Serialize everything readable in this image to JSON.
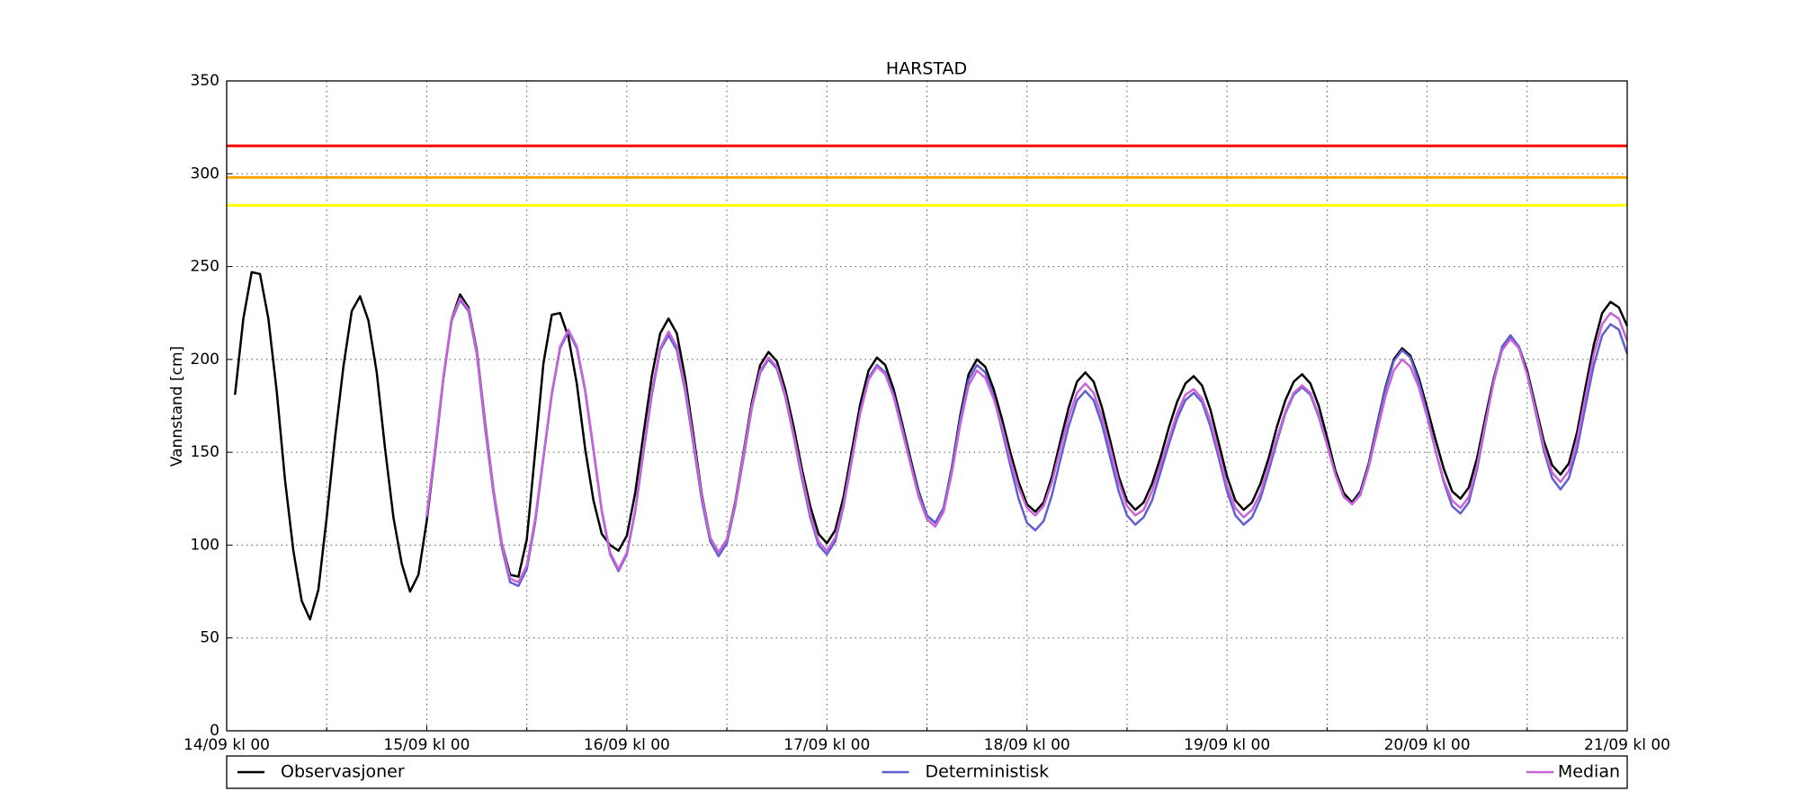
{
  "chart_data": {
    "type": "line",
    "title": "HARSTAD",
    "y_label": "Vannstand [cm]",
    "x": [
      1,
      2,
      3,
      4,
      5,
      6,
      7,
      8,
      9,
      10,
      11,
      12,
      13,
      14,
      15,
      16,
      17,
      18,
      19,
      20,
      21,
      22,
      23,
      24,
      25,
      26,
      27,
      28,
      29,
      30,
      31,
      32,
      33,
      34,
      35,
      36,
      37,
      38,
      39,
      40,
      41,
      42,
      43,
      44,
      45,
      46,
      47,
      48,
      49,
      50,
      51,
      52,
      53,
      54,
      55,
      56,
      57,
      58,
      59,
      60,
      61,
      62,
      63,
      64,
      65,
      66,
      67,
      68,
      69,
      70,
      71,
      72,
      73,
      74,
      75,
      76,
      77,
      78,
      79,
      80,
      81,
      82,
      83,
      84,
      85,
      86,
      87,
      88,
      89,
      90,
      91,
      92,
      93,
      94,
      95,
      96,
      97,
      98,
      99,
      100,
      101,
      102,
      103,
      104,
      105,
      106,
      107,
      108,
      109,
      110,
      111,
      112,
      113,
      114,
      115,
      116,
      117,
      118,
      119,
      120,
      121,
      122,
      123,
      124,
      125,
      126,
      127,
      128,
      129,
      130,
      131,
      132,
      133,
      134,
      135,
      136,
      137,
      138,
      139,
      140,
      141,
      142,
      143,
      144,
      145,
      146,
      147,
      148,
      149,
      150,
      151,
      152,
      153,
      154,
      155,
      156,
      157,
      158,
      159,
      160,
      161,
      162,
      163,
      164,
      165,
      166,
      167,
      168
    ],
    "series": [
      {
        "name": "Observasjoner",
        "color": "#000000",
        "values": [
          181,
          222,
          247,
          246,
          222,
          183,
          135,
          97,
          70,
          60,
          76,
          115,
          158,
          196,
          226,
          234,
          221,
          193,
          152,
          115,
          90,
          75,
          84,
          113,
          150,
          190,
          222,
          235,
          228,
          205,
          166,
          130,
          101,
          84,
          83,
          103,
          150,
          198,
          224,
          225,
          212,
          187,
          152,
          124,
          106,
          100,
          97,
          105,
          128,
          160,
          191,
          214,
          222,
          214,
          190,
          159,
          127,
          104,
          96,
          103,
          123,
          150,
          177,
          197,
          204,
          199,
          184,
          164,
          141,
          121,
          106,
          101,
          108,
          126,
          151,
          176,
          194,
          201,
          197,
          184,
          166,
          147,
          129,
          116,
          112,
          120,
          142,
          170,
          192,
          200,
          196,
          184,
          168,
          150,
          134,
          122,
          118,
          123,
          137,
          156,
          174,
          188,
          193,
          188,
          174,
          156,
          137,
          124,
          119,
          123,
          133,
          147,
          163,
          177,
          187,
          191,
          186,
          173,
          155,
          137,
          124,
          119,
          123,
          133,
          147,
          164,
          178,
          188,
          192,
          187,
          175,
          158,
          140,
          128,
          123,
          129,
          144,
          165,
          185,
          200,
          206,
          202,
          190,
          174,
          157,
          141,
          129,
          125,
          131,
          147,
          169,
          190,
          206,
          212,
          207,
          194,
          175,
          156,
          143,
          138,
          144,
          161,
          185,
          208,
          225,
          231,
          228,
          218
        ]
      },
      {
        "name": "Deterministisk",
        "color": "#5f5fd3",
        "values": [
          null,
          null,
          null,
          null,
          null,
          null,
          null,
          null,
          null,
          null,
          null,
          null,
          null,
          null,
          null,
          null,
          null,
          null,
          null,
          null,
          null,
          null,
          null,
          115,
          150,
          190,
          221,
          232,
          226,
          203,
          163,
          128,
          99,
          80,
          78,
          87,
          112,
          147,
          181,
          206,
          215,
          206,
          183,
          151,
          118,
          95,
          86,
          95,
          118,
          150,
          181,
          205,
          213,
          205,
          183,
          154,
          124,
          102,
          94,
          101,
          121,
          147,
          174,
          193,
          200,
          195,
          180,
          159,
          136,
          115,
          100,
          95,
          102,
          121,
          146,
          172,
          190,
          197,
          193,
          181,
          164,
          145,
          128,
          116,
          112,
          120,
          141,
          168,
          189,
          197,
          193,
          180,
          162,
          143,
          125,
          112,
          108,
          113,
          127,
          146,
          164,
          178,
          183,
          178,
          165,
          147,
          129,
          116,
          111,
          115,
          124,
          139,
          154,
          168,
          178,
          182,
          177,
          164,
          147,
          129,
          116,
          111,
          115,
          125,
          140,
          156,
          171,
          181,
          185,
          181,
          169,
          154,
          138,
          126,
          122,
          128,
          143,
          164,
          184,
          199,
          205,
          201,
          188,
          171,
          151,
          134,
          121,
          117,
          123,
          141,
          165,
          189,
          207,
          213,
          207,
          192,
          172,
          151,
          136,
          130,
          136,
          152,
          175,
          197,
          213,
          219,
          216,
          203
        ]
      },
      {
        "name": "Median",
        "color": "#c864d8",
        "values": [
          null,
          null,
          null,
          null,
          null,
          null,
          null,
          null,
          null,
          null,
          null,
          null,
          null,
          null,
          null,
          null,
          null,
          null,
          null,
          null,
          null,
          null,
          null,
          116,
          152,
          191,
          222,
          233,
          227,
          204,
          165,
          130,
          101,
          82,
          80,
          89,
          114,
          148,
          182,
          207,
          216,
          207,
          184,
          152,
          119,
          96,
          87,
          96,
          119,
          151,
          183,
          206,
          215,
          207,
          185,
          156,
          126,
          104,
          96,
          103,
          122,
          149,
          175,
          194,
          201,
          196,
          181,
          160,
          138,
          117,
          102,
          97,
          104,
          122,
          147,
          171,
          189,
          196,
          192,
          180,
          162,
          144,
          126,
          114,
          110,
          118,
          139,
          165,
          186,
          194,
          190,
          179,
          164,
          146,
          131,
          120,
          116,
          121,
          134,
          152,
          169,
          182,
          187,
          182,
          169,
          152,
          134,
          121,
          116,
          119,
          129,
          143,
          157,
          171,
          181,
          184,
          179,
          167,
          150,
          132,
          120,
          115,
          119,
          128,
          143,
          158,
          172,
          182,
          186,
          182,
          170,
          154,
          138,
          126,
          122,
          127,
          142,
          161,
          180,
          194,
          200,
          196,
          185,
          169,
          151,
          135,
          124,
          120,
          126,
          143,
          166,
          188,
          205,
          211,
          206,
          192,
          173,
          153,
          139,
          134,
          140,
          157,
          180,
          203,
          219,
          225,
          222,
          210
        ]
      }
    ],
    "reference_lines": [
      {
        "value": 315,
        "color": "#ff0000"
      },
      {
        "value": 298,
        "color": "#ffa500"
      },
      {
        "value": 283,
        "color": "#ffff00"
      }
    ],
    "xlim": [
      0,
      168
    ],
    "xticks": [
      {
        "value": 0,
        "label": "14/09 kl 00"
      },
      {
        "value": 24,
        "label": "15/09 kl 00"
      },
      {
        "value": 48,
        "label": "16/09 kl 00"
      },
      {
        "value": 72,
        "label": "17/09 kl 00"
      },
      {
        "value": 96,
        "label": "18/09 kl 00"
      },
      {
        "value": 120,
        "label": "19/09 kl 00"
      },
      {
        "value": 144,
        "label": "20/09 kl 00"
      },
      {
        "value": 168,
        "label": "21/09 kl 00"
      }
    ],
    "ylim": [
      0,
      350
    ],
    "yticks": [
      0,
      50,
      100,
      150,
      200,
      250,
      300,
      350
    ],
    "grid": true,
    "legend": "bottom"
  }
}
